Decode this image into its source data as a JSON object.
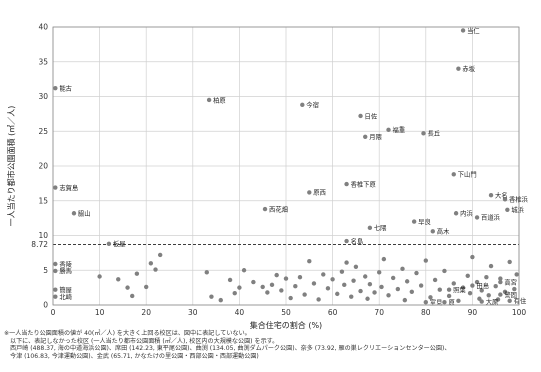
{
  "chart_data": {
    "type": "scatter",
    "xlabel": "集合住宅の割合 (%)",
    "ylabel": "一人当たり都市公園面積 (㎡／人)",
    "xlim": [
      0,
      100
    ],
    "ylim": [
      0,
      40
    ],
    "xticks": [
      "0",
      "10",
      "20",
      "30",
      "40",
      "50",
      "60",
      "70",
      "80",
      "90",
      "100"
    ],
    "yticks": [
      "0",
      "5",
      "10",
      "15",
      "20",
      "25",
      "30",
      "35",
      "40"
    ],
    "grid": true,
    "reference_line": {
      "value": 8.72,
      "label": "8.72",
      "style": "dashed"
    },
    "labeled_points": [
      {
        "label": "当仁",
        "x": 88,
        "y": 39.5
      },
      {
        "label": "赤坂",
        "x": 87,
        "y": 34
      },
      {
        "label": "能古",
        "x": 0.5,
        "y": 31.2
      },
      {
        "label": "柏原",
        "x": 33.5,
        "y": 29.5
      },
      {
        "label": "今宿",
        "x": 53.5,
        "y": 28.8
      },
      {
        "label": "日佐",
        "x": 66,
        "y": 27.2
      },
      {
        "label": "福重",
        "x": 72,
        "y": 25.2
      },
      {
        "label": "長丘",
        "x": 79.5,
        "y": 24.7
      },
      {
        "label": "月隈",
        "x": 67,
        "y": 24.2
      },
      {
        "label": "下山門",
        "x": 86,
        "y": 18.8
      },
      {
        "label": "志賀島",
        "x": 0.5,
        "y": 16.9
      },
      {
        "label": "香椎下原",
        "x": 63,
        "y": 17.4
      },
      {
        "label": "原西",
        "x": 55,
        "y": 16.2
      },
      {
        "label": "大名",
        "x": 94,
        "y": 15.8
      },
      {
        "label": "香椎浜",
        "x": 97,
        "y": 15.2
      },
      {
        "label": "脇山",
        "x": 4.5,
        "y": 13.2
      },
      {
        "label": "西花畑",
        "x": 45.5,
        "y": 13.8
      },
      {
        "label": "内浜",
        "x": 86.5,
        "y": 13.2
      },
      {
        "label": "城浜",
        "x": 97.5,
        "y": 13.7
      },
      {
        "label": "百道浜",
        "x": 91,
        "y": 12.6
      },
      {
        "label": "早良",
        "x": 77.5,
        "y": 12.0
      },
      {
        "label": "七隈",
        "x": 68,
        "y": 11.1
      },
      {
        "label": "高木",
        "x": 81.5,
        "y": 10.6
      },
      {
        "label": "名島",
        "x": 63,
        "y": 9.2
      },
      {
        "label": "板屋",
        "x": 12,
        "y": 8.8
      },
      {
        "label": "香陵",
        "x": 0.5,
        "y": 5.9
      },
      {
        "label": "勝馬",
        "x": 0.5,
        "y": 4.9
      },
      {
        "label": "簡屋",
        "x": 0.5,
        "y": 2.2
      },
      {
        "label": "北崎",
        "x": 0.5,
        "y": 1.2
      },
      {
        "label": "高宮",
        "x": 96,
        "y": 3.3
      },
      {
        "label": "警固",
        "x": 96,
        "y": 1.5
      },
      {
        "label": "田島",
        "x": 90,
        "y": 2.8
      },
      {
        "label": "照葉",
        "x": 85,
        "y": 2.2
      },
      {
        "label": "室見",
        "x": 80,
        "y": 0.4
      },
      {
        "label": "原",
        "x": 84,
        "y": 0.4
      },
      {
        "label": "大原",
        "x": 92,
        "y": 0.5
      },
      {
        "label": "有住",
        "x": 98,
        "y": 0.6
      }
    ],
    "points": [
      {
        "x": 10,
        "y": 4.1
      },
      {
        "x": 14,
        "y": 3.7
      },
      {
        "x": 16,
        "y": 2.5
      },
      {
        "x": 17,
        "y": 1.3
      },
      {
        "x": 18,
        "y": 4.5
      },
      {
        "x": 20,
        "y": 2.6
      },
      {
        "x": 21,
        "y": 6.0
      },
      {
        "x": 22,
        "y": 5.1
      },
      {
        "x": 23,
        "y": 7.2
      },
      {
        "x": 33,
        "y": 4.7
      },
      {
        "x": 34,
        "y": 1.2
      },
      {
        "x": 36,
        "y": 0.7
      },
      {
        "x": 38,
        "y": 3.6
      },
      {
        "x": 39,
        "y": 1.7
      },
      {
        "x": 40,
        "y": 2.5
      },
      {
        "x": 41,
        "y": 5.0
      },
      {
        "x": 43,
        "y": 3.3
      },
      {
        "x": 45,
        "y": 2.6
      },
      {
        "x": 46,
        "y": 1.8
      },
      {
        "x": 47,
        "y": 2.9
      },
      {
        "x": 48,
        "y": 4.3
      },
      {
        "x": 49,
        "y": 2.1
      },
      {
        "x": 50,
        "y": 3.8
      },
      {
        "x": 51,
        "y": 1.0
      },
      {
        "x": 52,
        "y": 2.7
      },
      {
        "x": 53,
        "y": 4.0
      },
      {
        "x": 54,
        "y": 1.5
      },
      {
        "x": 55,
        "y": 6.3
      },
      {
        "x": 56,
        "y": 3.1
      },
      {
        "x": 57,
        "y": 0.8
      },
      {
        "x": 58,
        "y": 4.4
      },
      {
        "x": 59,
        "y": 2.4
      },
      {
        "x": 60,
        "y": 3.7
      },
      {
        "x": 61,
        "y": 1.6
      },
      {
        "x": 62,
        "y": 4.8
      },
      {
        "x": 62.5,
        "y": 2.9
      },
      {
        "x": 63,
        "y": 6.1
      },
      {
        "x": 64,
        "y": 1.2
      },
      {
        "x": 64.5,
        "y": 3.5
      },
      {
        "x": 65,
        "y": 5.5
      },
      {
        "x": 66,
        "y": 2.0
      },
      {
        "x": 67,
        "y": 4.1
      },
      {
        "x": 67.5,
        "y": 0.9
      },
      {
        "x": 68,
        "y": 3.0
      },
      {
        "x": 69,
        "y": 1.8
      },
      {
        "x": 70,
        "y": 4.7
      },
      {
        "x": 70.5,
        "y": 2.6
      },
      {
        "x": 71,
        "y": 6.6
      },
      {
        "x": 72,
        "y": 1.4
      },
      {
        "x": 73,
        "y": 3.9
      },
      {
        "x": 74,
        "y": 2.3
      },
      {
        "x": 75,
        "y": 5.2
      },
      {
        "x": 75.5,
        "y": 0.7
      },
      {
        "x": 76,
        "y": 3.4
      },
      {
        "x": 77,
        "y": 1.9
      },
      {
        "x": 78,
        "y": 4.6
      },
      {
        "x": 79,
        "y": 2.8
      },
      {
        "x": 80,
        "y": 6.4
      },
      {
        "x": 81,
        "y": 1.1
      },
      {
        "x": 82,
        "y": 3.6
      },
      {
        "x": 83,
        "y": 2.2
      },
      {
        "x": 84,
        "y": 4.9
      },
      {
        "x": 85,
        "y": 1.3
      },
      {
        "x": 86,
        "y": 3.1
      },
      {
        "x": 87,
        "y": 0.6
      },
      {
        "x": 88,
        "y": 2.5
      },
      {
        "x": 89,
        "y": 4.2
      },
      {
        "x": 89.5,
        "y": 1.7
      },
      {
        "x": 90,
        "y": 6.9
      },
      {
        "x": 91,
        "y": 3.3
      },
      {
        "x": 91.5,
        "y": 0.9
      },
      {
        "x": 92,
        "y": 2.1
      },
      {
        "x": 93,
        "y": 4.0
      },
      {
        "x": 93.5,
        "y": 1.4
      },
      {
        "x": 94,
        "y": 5.6
      },
      {
        "x": 95,
        "y": 2.7
      },
      {
        "x": 95.5,
        "y": 0.8
      },
      {
        "x": 96,
        "y": 3.8
      },
      {
        "x": 97,
        "y": 1.9
      },
      {
        "x": 98,
        "y": 6.2
      },
      {
        "x": 99,
        "y": 2.3
      },
      {
        "x": 99.5,
        "y": 4.4
      }
    ]
  },
  "notes": {
    "line1": "※一人当たり公園面積の値が 40(㎡／人) を大きく上回る校区は、図中に表記していない。",
    "line2": "以下に、表記しなかった校区 (一人当たり都市公園面積 (㎡／人), 校区内の大規模な公園) を示す。",
    "line3": "西戸崎 (488.37, 海の中道海浜公園)、席田 (142.23, 東平尾公園)、曲渕 (134.05, 曲渕ダムパーク公園)、奈多 (73.92, 雁の巣レクリエーションセンター公園)、",
    "line4": "今津 (106.83, 今津運動公園)、金武 (65.71, かなたけの里公園・西部公園・西部運動公園)"
  },
  "colors": {
    "point": "#808080",
    "grid": "#d0d0d0",
    "axis": "#888888",
    "reference": "#222222"
  }
}
